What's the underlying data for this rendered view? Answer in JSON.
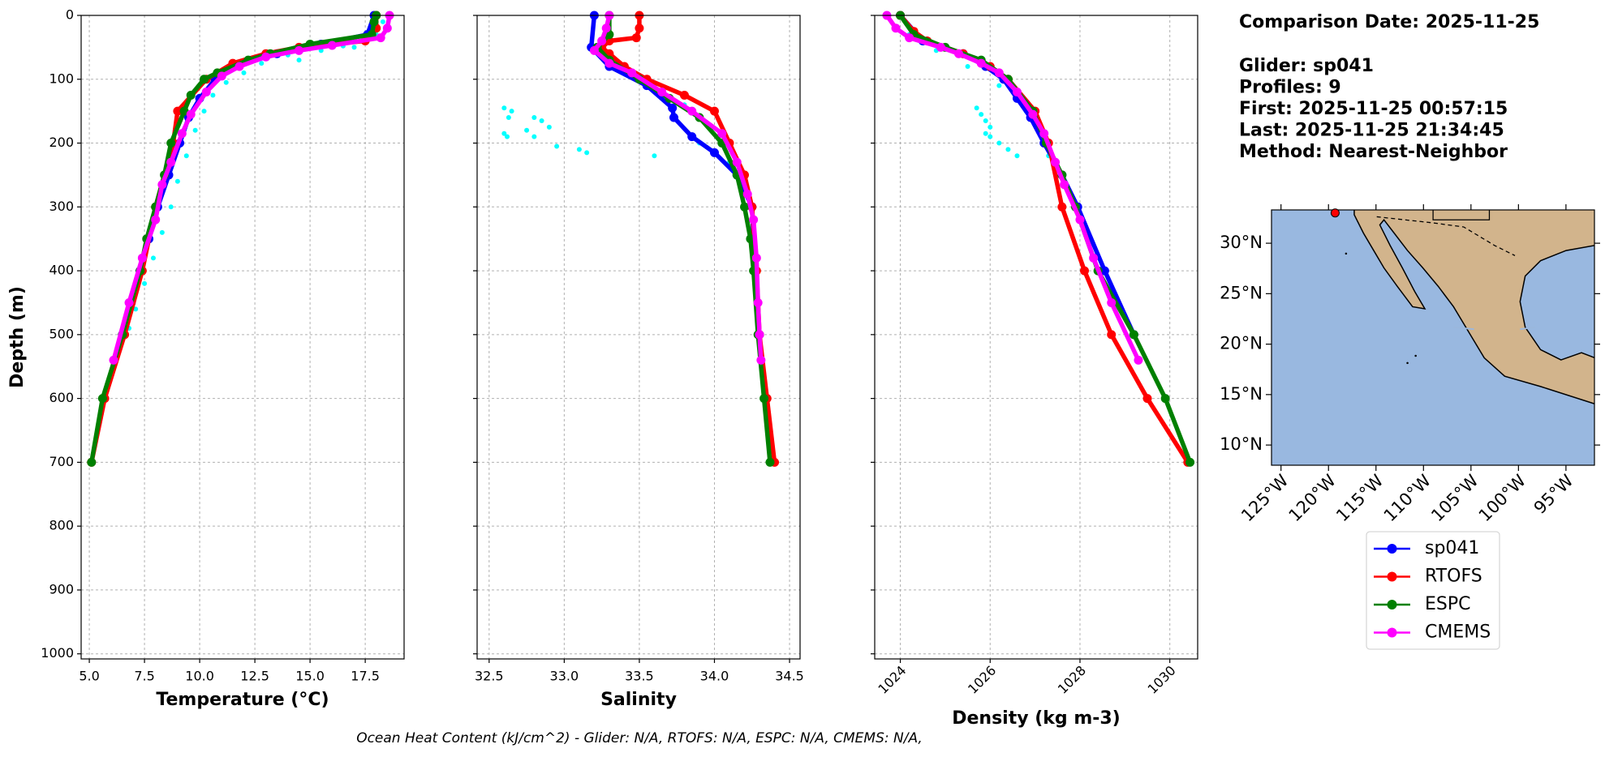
{
  "chart_data": [
    {
      "type": "line",
      "xlabel": "Temperature (°C)",
      "ylabel": "Depth (m)",
      "show_ytick_labels": true,
      "xlim": [
        4.63,
        19.26
      ],
      "xticks": [
        {
          "value": 5,
          "label": "5.0"
        },
        7.5,
        {
          "value": 10,
          "label": "10.0"
        },
        12.5,
        {
          "value": 15,
          "label": "15.0"
        },
        17.5
      ],
      "ylim": [
        0,
        1008
      ],
      "y_inverted": true,
      "yticks": [
        0,
        100,
        200,
        300,
        400,
        500,
        600,
        700,
        800,
        900,
        1000
      ],
      "grid": true,
      "series": [
        {
          "color": "#00ffff",
          "marker_only": true,
          "x": [
            18.3,
            18.0,
            16.5,
            15.5,
            14.0,
            12.8,
            12.0,
            11.2,
            10.6,
            10.2,
            9.8,
            9.4,
            9.0,
            8.7,
            8.3,
            7.9,
            7.5,
            7.1,
            6.8,
            17.0,
            14.5
          ],
          "y": [
            10,
            30,
            48,
            55,
            62,
            75,
            90,
            105,
            125,
            150,
            180,
            220,
            260,
            300,
            340,
            380,
            420,
            460,
            490,
            50,
            70
          ]
        },
        {
          "name": "sp041",
          "color": "#0000ff",
          "x": [
            17.9,
            17.6,
            15.5,
            13.5,
            11.5,
            10.7,
            10.0,
            9.5,
            9.1,
            8.6,
            8.1,
            7.7,
            7.3,
            6.9,
            6.5
          ],
          "y": [
            0,
            30,
            45,
            60,
            80,
            100,
            130,
            160,
            200,
            250,
            300,
            350,
            400,
            450,
            500
          ]
        },
        {
          "name": "RTOFS",
          "color": "#ff0000",
          "x": [
            18.0,
            18.0,
            17.5,
            14.5,
            13.0,
            11.5,
            10.3,
            9.0,
            8.8,
            8.0,
            7.4,
            6.6,
            5.7,
            5.1
          ],
          "y": [
            0,
            20,
            40,
            50,
            60,
            75,
            100,
            150,
            200,
            300,
            400,
            500,
            600,
            700
          ]
        },
        {
          "name": "ESPC",
          "color": "#008000",
          "x": [
            18.0,
            17.9,
            17.8,
            15.0,
            13.2,
            12.2,
            10.8,
            10.2,
            9.6,
            9.3,
            8.7,
            8.4,
            8.0,
            7.6,
            7.3,
            6.5,
            5.6,
            5.1
          ],
          "y": [
            0,
            10,
            30,
            45,
            60,
            70,
            90,
            100,
            125,
            150,
            200,
            250,
            300,
            350,
            400,
            500,
            600,
            700
          ]
        },
        {
          "name": "CMEMS",
          "color": "#ff00ff",
          "x": [
            18.6,
            18.5,
            18.2,
            16.0,
            14.5,
            13.0,
            11.8,
            11.0,
            10.3,
            9.6,
            9.2,
            8.7,
            8.3,
            8.0,
            7.4,
            6.8,
            6.1
          ],
          "y": [
            0,
            20,
            35,
            47,
            55,
            65,
            80,
            95,
            120,
            155,
            185,
            230,
            265,
            320,
            380,
            450,
            540
          ]
        }
      ]
    },
    {
      "type": "line",
      "xlabel": "Salinity",
      "show_ytick_labels": false,
      "xlim": [
        32.42,
        34.57
      ],
      "xticks": [
        32.5,
        {
          "value": 33,
          "label": "33.0"
        },
        33.5,
        {
          "value": 34,
          "label": "34.0"
        },
        34.5
      ],
      "ylim": [
        0,
        1008
      ],
      "y_inverted": true,
      "yticks": [
        0,
        100,
        200,
        300,
        400,
        500,
        600,
        700,
        800,
        900,
        1000
      ],
      "grid": true,
      "series": [
        {
          "color": "#00ffff",
          "marker_only": true,
          "x": [
            32.6,
            32.65,
            32.63,
            32.8,
            32.85,
            32.9,
            32.75,
            32.6,
            32.62,
            32.8,
            32.95,
            33.1,
            33.15,
            33.6,
            33.9,
            34.2,
            33.6,
            33.8,
            34.1
          ],
          "y": [
            145,
            150,
            160,
            160,
            165,
            175,
            180,
            185,
            190,
            190,
            205,
            210,
            215,
            220,
            200,
            270,
            110,
            140,
            230
          ]
        },
        {
          "name": "sp041",
          "color": "#0000ff",
          "x": [
            33.2,
            33.18,
            33.3,
            33.55,
            33.72,
            33.73,
            33.85,
            34.0,
            34.15,
            34.25,
            34.27,
            34.3
          ],
          "y": [
            0,
            50,
            80,
            110,
            145,
            160,
            190,
            215,
            250,
            300,
            400,
            500
          ]
        },
        {
          "name": "RTOFS",
          "color": "#ff0000",
          "x": [
            33.5,
            33.5,
            33.48,
            33.3,
            33.25,
            33.3,
            33.4,
            33.55,
            33.8,
            34.0,
            34.1,
            34.2,
            34.25,
            34.28,
            34.3,
            34.35,
            34.4
          ],
          "y": [
            0,
            20,
            35,
            40,
            50,
            60,
            80,
            100,
            125,
            150,
            200,
            250,
            300,
            400,
            500,
            600,
            700
          ]
        },
        {
          "name": "ESPC",
          "color": "#008000",
          "x": [
            33.3,
            33.3,
            33.22,
            33.3,
            33.5,
            33.7,
            33.9,
            34.05,
            34.15,
            34.2,
            34.24,
            34.26,
            34.29,
            34.33,
            34.37
          ],
          "y": [
            0,
            30,
            50,
            70,
            100,
            130,
            160,
            200,
            250,
            300,
            350,
            400,
            500,
            600,
            700
          ]
        },
        {
          "name": "CMEMS",
          "color": "#ff00ff",
          "x": [
            33.3,
            33.28,
            33.25,
            33.2,
            33.3,
            33.45,
            33.65,
            33.85,
            34.05,
            34.15,
            34.22,
            34.26,
            34.28,
            34.29,
            34.3,
            34.31
          ],
          "y": [
            0,
            20,
            40,
            55,
            75,
            90,
            120,
            150,
            185,
            230,
            280,
            320,
            380,
            450,
            500,
            540
          ]
        }
      ]
    },
    {
      "type": "line",
      "xlabel": "Density (kg m-3)",
      "show_ytick_labels": false,
      "rotate_xtick_labels": true,
      "xlim": [
        1023.43,
        1030.62
      ],
      "xticks": [
        1024,
        1026,
        1028,
        1030
      ],
      "ylim": [
        0,
        1008
      ],
      "y_inverted": true,
      "yticks": [
        0,
        100,
        200,
        300,
        400,
        500,
        600,
        700,
        800,
        900,
        1000
      ],
      "grid": true,
      "series": [
        {
          "color": "#00ffff",
          "marker_only": true,
          "x": [
            1025.7,
            1025.8,
            1025.9,
            1026.0,
            1025.9,
            1026.0,
            1026.2,
            1026.4,
            1026.6,
            1024.2,
            1024.8,
            1025.5,
            1026.2,
            1026.8,
            1027.3
          ],
          "y": [
            145,
            155,
            165,
            175,
            185,
            190,
            200,
            210,
            220,
            30,
            55,
            80,
            110,
            150,
            220
          ]
        },
        {
          "name": "sp041",
          "color": "#0000ff",
          "x": [
            1024.0,
            1024.5,
            1025.4,
            1025.9,
            1026.3,
            1026.6,
            1026.9,
            1027.2,
            1027.6,
            1027.95,
            1028.55,
            1029.2
          ],
          "y": [
            0,
            40,
            60,
            80,
            100,
            130,
            160,
            200,
            250,
            300,
            400,
            500
          ]
        },
        {
          "name": "RTOFS",
          "color": "#ff0000",
          "x": [
            1024.0,
            1024.3,
            1024.6,
            1025.4,
            1026.0,
            1026.4,
            1027.0,
            1027.3,
            1027.6,
            1028.1,
            1028.7,
            1029.5,
            1030.4
          ],
          "y": [
            0,
            25,
            40,
            60,
            80,
            100,
            150,
            200,
            300,
            400,
            500,
            600,
            700
          ]
        },
        {
          "name": "ESPC",
          "color": "#008000",
          "x": [
            1024.0,
            1024.3,
            1025.0,
            1025.8,
            1026.4,
            1026.95,
            1027.25,
            1027.6,
            1027.9,
            1028.4,
            1029.2,
            1029.9,
            1030.45
          ],
          "y": [
            0,
            30,
            50,
            70,
            100,
            150,
            200,
            250,
            300,
            400,
            500,
            600,
            700
          ]
        },
        {
          "name": "CMEMS",
          "color": "#ff00ff",
          "x": [
            1023.7,
            1023.9,
            1024.2,
            1024.9,
            1025.3,
            1025.8,
            1026.2,
            1026.6,
            1026.95,
            1027.2,
            1027.45,
            1027.65,
            1028.0,
            1028.3,
            1028.7,
            1029.3
          ],
          "y": [
            0,
            20,
            35,
            50,
            60,
            75,
            90,
            120,
            155,
            185,
            230,
            265,
            320,
            380,
            450,
            540
          ]
        }
      ]
    },
    {
      "type": "map",
      "xlim": [
        -126,
        -92
      ],
      "ylim": [
        8,
        33.3
      ],
      "xticks": [
        {
          "value": -125,
          "label": "125°W"
        },
        {
          "value": -120,
          "label": "120°W"
        },
        {
          "value": -115,
          "label": "115°W"
        },
        {
          "value": -110,
          "label": "110°W"
        },
        {
          "value": -105,
          "label": "105°W"
        },
        {
          "value": -100,
          "label": "100°W"
        },
        {
          "value": -95,
          "label": "95°W"
        }
      ],
      "yticks": [
        {
          "value": 10,
          "label": "10°N"
        },
        {
          "value": 15,
          "label": "15°N"
        },
        {
          "value": 20,
          "label": "20°N"
        },
        {
          "value": 25,
          "label": "25°N"
        },
        {
          "value": 30,
          "label": "30°N"
        }
      ],
      "glider_location": {
        "lon": -119.3,
        "lat": 33.0,
        "color": "#ff0000"
      }
    }
  ],
  "info": {
    "title": "Comparison Date: 2025-11-25",
    "lines": [
      "Glider: sp041",
      "Profiles: 9",
      "First: 2025-11-25 00:57:15",
      "Last: 2025-11-25 21:34:45",
      "Method: Nearest-Neighbor"
    ]
  },
  "footer": "Ocean Heat Content (kJ/cm^2) - Glider: N/A,  RTOFS: N/A,  ESPC: N/A,  CMEMS: N/A,"
}
